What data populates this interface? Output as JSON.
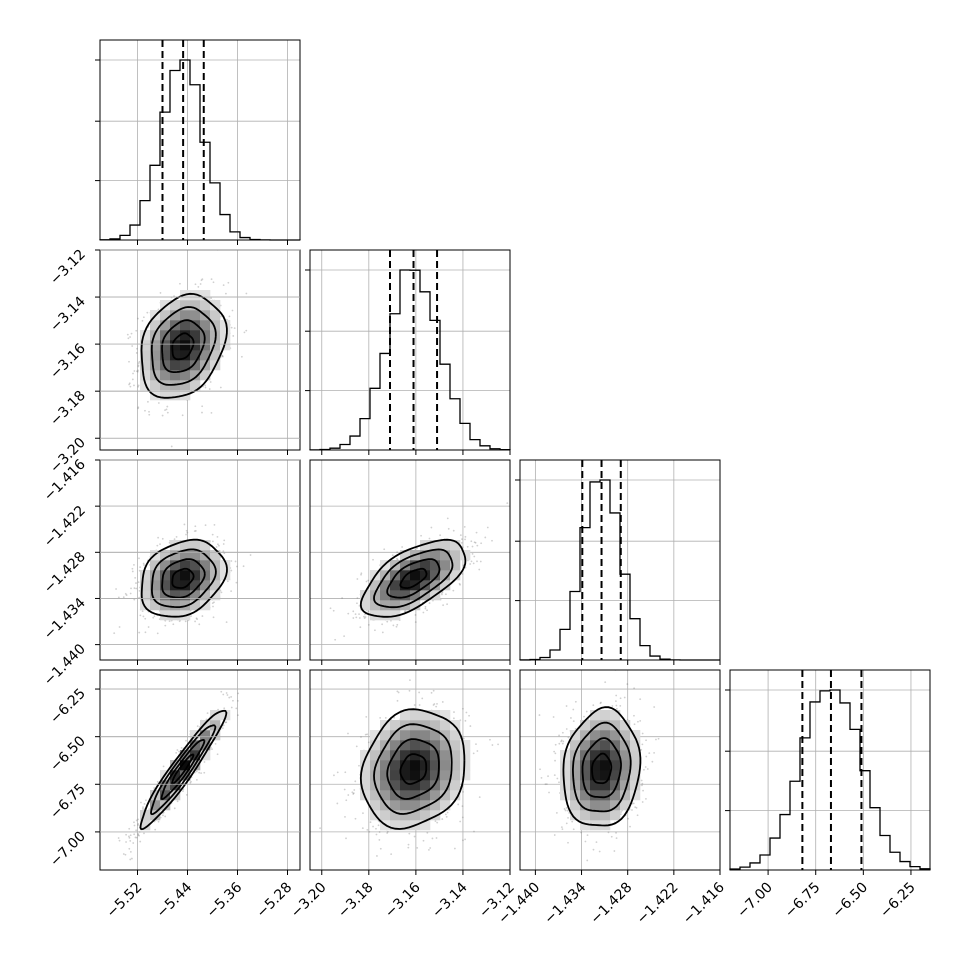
{
  "chart_data": {
    "type": "corner",
    "parameters": [
      {
        "mean": -5.448,
        "sd": 0.034,
        "range": [
          -5.58,
          -5.26
        ],
        "ticks": [
          -5.52,
          -5.44,
          -5.36,
          -5.28
        ],
        "tick_labels": [
          "−5.52",
          "−5.44",
          "−5.36",
          "−5.28"
        ],
        "quantiles": [
          -5.48,
          -5.447,
          -5.414
        ]
      },
      {
        "mean": -3.161,
        "sd": 0.011,
        "range": [
          -3.205,
          -3.12
        ],
        "ticks": [
          -3.2,
          -3.18,
          -3.16,
          -3.14,
          -3.12
        ],
        "tick_labels": [
          "−3.20",
          "−3.18",
          "−3.16",
          "−3.14",
          "−3.12"
        ],
        "quantiles": [
          -3.171,
          -3.161,
          -3.151
        ]
      },
      {
        "mean": -1.4314,
        "sd": 0.0025,
        "range": [
          -1.442,
          -1.416
        ],
        "ticks": [
          -1.44,
          -1.434,
          -1.428,
          -1.422,
          -1.416
        ],
        "tick_labels": [
          "−1.440",
          "−1.434",
          "−1.428",
          "−1.422",
          "−1.416"
        ],
        "quantiles": [
          -1.4339,
          -1.4314,
          -1.4289
        ]
      },
      {
        "mean": -6.67,
        "sd": 0.155,
        "range": [
          -7.2,
          -6.15
        ],
        "ticks": [
          -7.0,
          -6.75,
          -6.5,
          -6.25
        ],
        "tick_labels": [
          "−7.00",
          "−6.75",
          "−6.50",
          "−6.25"
        ],
        "quantiles": [
          -6.82,
          -6.67,
          -6.51
        ]
      }
    ],
    "correlations": [
      {
        "i": 1,
        "j": 0,
        "rho": 0.25
      },
      {
        "i": 2,
        "j": 0,
        "rho": 0.25
      },
      {
        "i": 2,
        "j": 1,
        "rho": 0.6
      },
      {
        "i": 3,
        "j": 0,
        "rho": 0.95
      },
      {
        "i": 3,
        "j": 1,
        "rho": 0.15
      },
      {
        "i": 3,
        "j": 2,
        "rho": 0.1
      }
    ],
    "contour_levels_sigma": [
      0.5,
      1.0,
      1.5,
      2.0
    ],
    "histogram_bins": 20,
    "grid": true
  }
}
